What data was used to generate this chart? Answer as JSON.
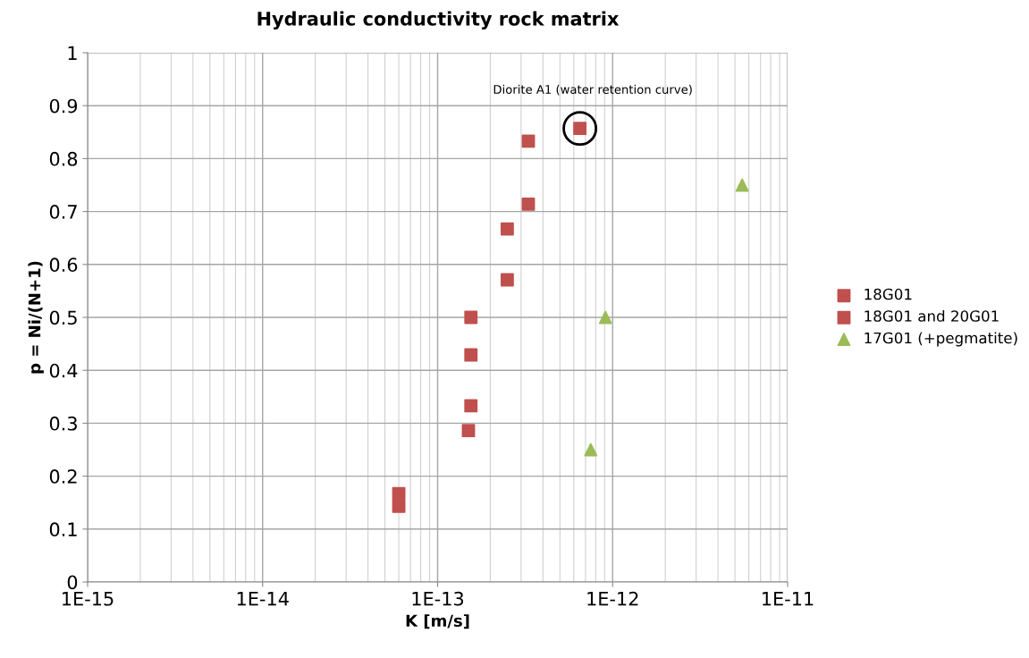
{
  "chart_data": {
    "type": "scatter",
    "title": "Hydraulic conductivity rock matrix",
    "xlabel": "K [m/s]",
    "ylabel": "p = Ni/(N+1)",
    "log": "x",
    "xlim": [
      1e-15,
      1e-11
    ],
    "xticks": [
      {
        "value": 1e-15,
        "label": "1E-15"
      },
      {
        "value": 1e-14,
        "label": "1E-14"
      },
      {
        "value": 1e-13,
        "label": "1E-13"
      },
      {
        "value": 1e-12,
        "label": "1E-12"
      },
      {
        "value": 1e-11,
        "label": "1E-11"
      }
    ],
    "ylim": [
      0,
      1
    ],
    "yticks": [
      0,
      0.1,
      0.2,
      0.3,
      0.4,
      0.5,
      0.6,
      0.7,
      0.8,
      0.9,
      1
    ],
    "grid": true,
    "legend": "right",
    "series": [
      {
        "name": "18G01",
        "color": "#c0504d",
        "marker": "square",
        "x": [
          6e-14,
          1.55e-13,
          1.55e-13,
          2.5e-13,
          3.3e-13
        ],
        "values": [
          0.167,
          0.333,
          0.5,
          0.667,
          0.833
        ]
      },
      {
        "name": "18G01 and 20G01",
        "color": "#c0504d",
        "marker": "square",
        "x": [
          6e-14,
          1.5e-13,
          1.55e-13,
          2.5e-13,
          3.3e-13,
          6.5e-13
        ],
        "values": [
          0.143,
          0.286,
          0.429,
          0.571,
          0.714,
          0.857
        ]
      },
      {
        "name": "17G01 (+pegmatite)",
        "color": "#9bbb59",
        "marker": "triangle",
        "x": [
          7.5e-13,
          9.1e-13,
          5.5e-12
        ],
        "values": [
          0.25,
          0.5,
          0.75
        ]
      }
    ],
    "annotations": [
      {
        "text": "Diorite A1 (water retention curve)",
        "x": 6.5e-13,
        "y": 0.857
      }
    ]
  }
}
